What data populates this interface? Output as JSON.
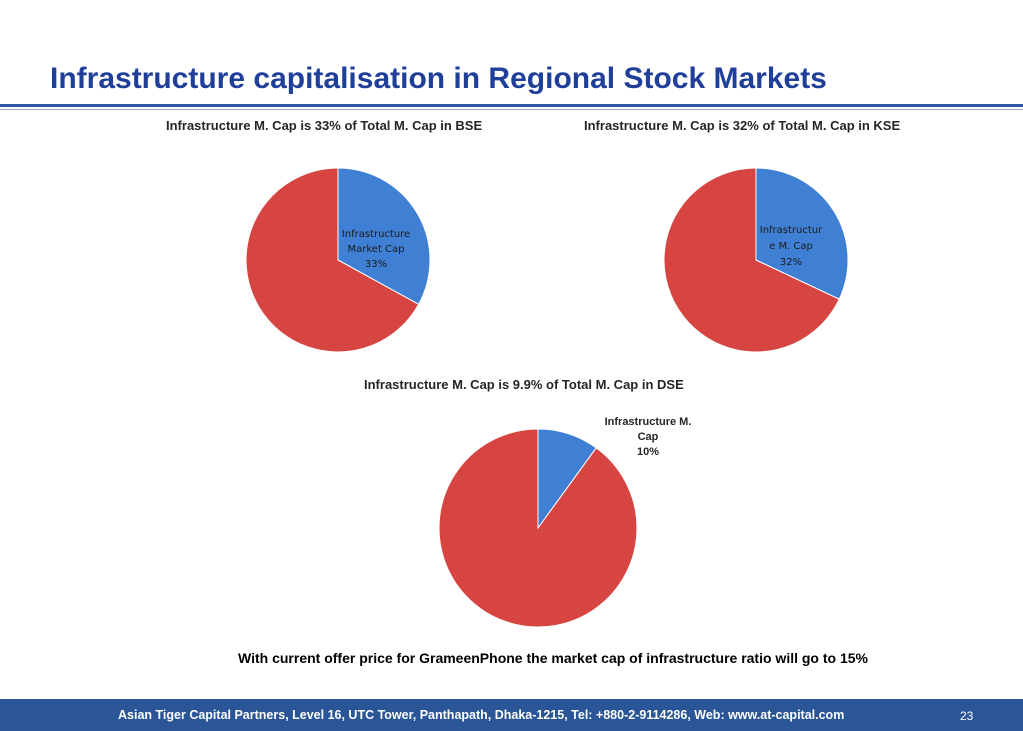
{
  "slide": {
    "title": "Infrastructure capitalisation in Regional Stock Markets"
  },
  "chart_data": [
    {
      "type": "pie",
      "title": "Infrastructure M. Cap is 33% of Total M. Cap in BSE",
      "slices": [
        {
          "label": "Infrastructure Market Cap",
          "value": 33,
          "color": "#3f7fd4"
        },
        {
          "label": "",
          "value": 67,
          "color": "#d64541"
        }
      ],
      "data_labels": [
        "Infrastructure",
        "Market Cap",
        "33%"
      ]
    },
    {
      "type": "pie",
      "title": "Infrastructure M. Cap is 32% of Total M. Cap in KSE",
      "slices": [
        {
          "label": "Infrastructure M. Cap",
          "value": 32,
          "color": "#3f7fd4"
        },
        {
          "label": "",
          "value": 68,
          "color": "#d64541"
        }
      ],
      "data_labels": [
        "Infrastructur",
        "e M. Cap",
        "32%"
      ]
    },
    {
      "type": "pie",
      "title": "Infrastructure M. Cap is 9.9% of Total M. Cap in DSE",
      "slices": [
        {
          "label": "Infrastructure M. Cap",
          "value": 10,
          "color": "#3f7fd4"
        },
        {
          "label": "",
          "value": 90,
          "color": "#d64541"
        }
      ],
      "data_labels": [
        "Infrastructure M.",
        "Cap",
        "10%"
      ]
    }
  ],
  "note": "With current offer price for GrameenPhone the market cap of  infrastructure ratio will go to 15%",
  "footer": {
    "text": "Asian Tiger Capital Partners, Level 16, UTC Tower, Panthapath, Dhaka-1215,  Tel: +880-2-9114286,  Web: www.at-capital.com",
    "page_number": "23",
    "background": "#2a5596"
  }
}
